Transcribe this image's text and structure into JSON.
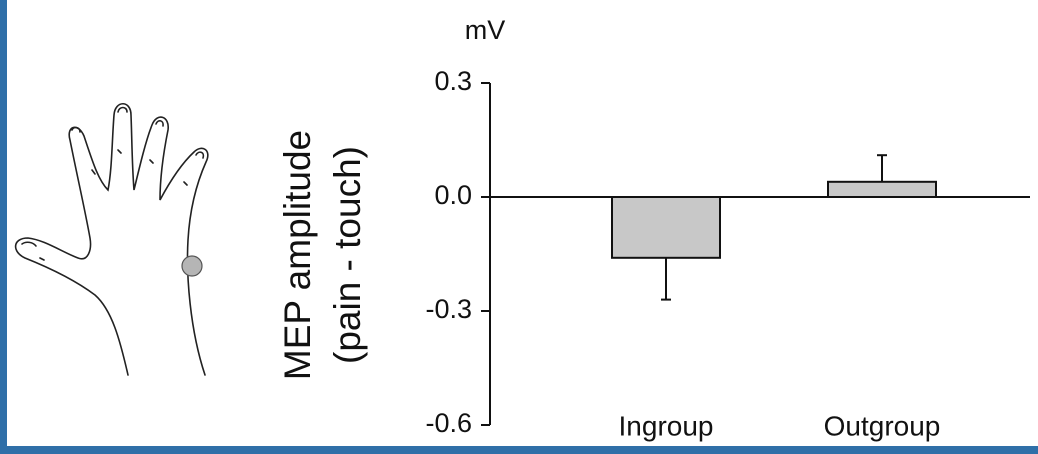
{
  "chart_data": {
    "type": "bar",
    "unit_label": "mV",
    "y_label": [
      "MEP amplitude",
      "(pain - touch)"
    ],
    "categories": [
      "Ingroup",
      "Outgroup"
    ],
    "values": [
      -0.16,
      0.04
    ],
    "errors": [
      0.11,
      0.07
    ],
    "color": "#c8c8c8",
    "ylim": [
      -0.6,
      0.3
    ],
    "yticks": [
      0.3,
      {
        "value": 0,
        "label": "0.0"
      },
      -0.3,
      -0.6
    ]
  }
}
